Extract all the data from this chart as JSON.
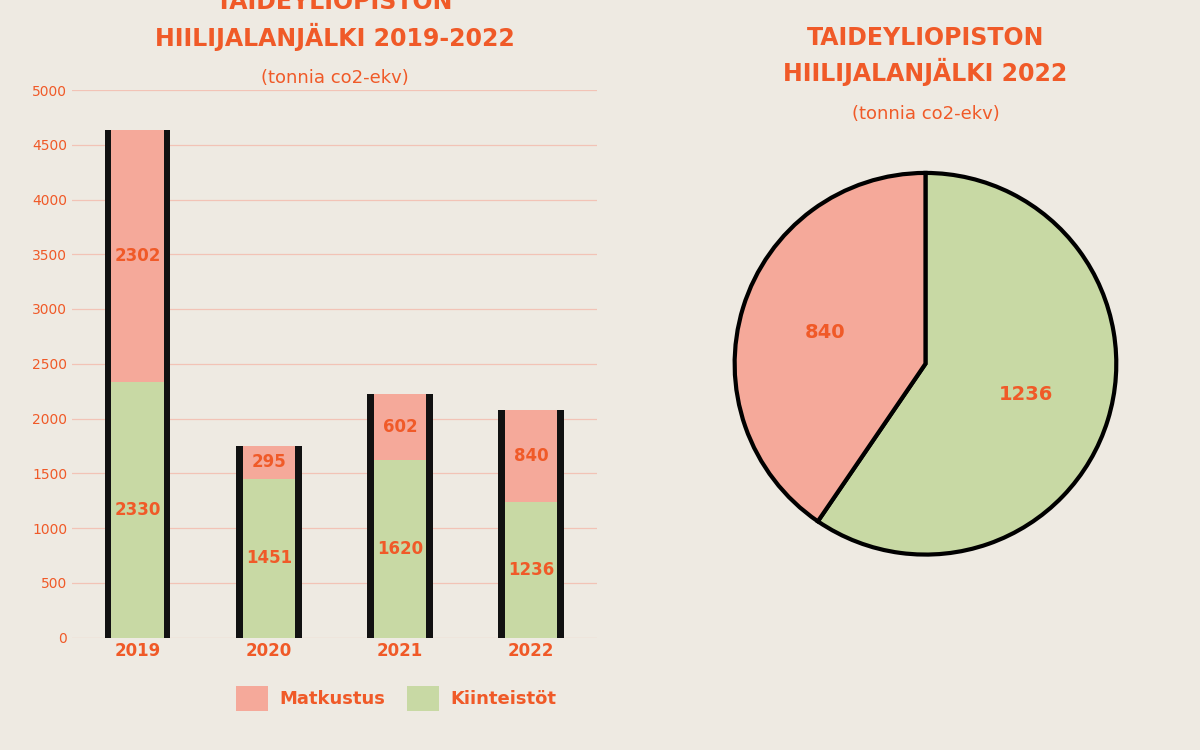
{
  "bg_color": "#eeeae2",
  "orange_color": "#f05a28",
  "bar_pink": "#f5a99a",
  "bar_green": "#c8d9a4",
  "bar_outline": "#111111",
  "years": [
    "2019",
    "2020",
    "2021",
    "2022"
  ],
  "matkustus": [
    2302,
    295,
    602,
    840
  ],
  "kiinteistot": [
    2330,
    1451,
    1620,
    1236
  ],
  "bar_title_line1": "TAIDEYLIOPISTON",
  "bar_title_line2": "HIILIJALANJÄLKI 2019-2022",
  "bar_subtitle": "(tonnia co2-ekv)",
  "pie_title_line1": "TAIDEYLIOPISTON",
  "pie_title_line2": "HIILIJALANJÄLKI 2022",
  "pie_subtitle": "(tonnia co2-ekv)",
  "pie_matkustus": 840,
  "pie_kiinteistot": 1236,
  "legend_matkustus": "Matkustus",
  "legend_kiinteistot": "Kiinteistöt",
  "ylim": [
    0,
    5000
  ],
  "yticks": [
    0,
    500,
    1000,
    1500,
    2000,
    2500,
    3000,
    3500,
    4000,
    4500,
    5000
  ],
  "grid_color": "#f5a99a",
  "grid_alpha": 0.6,
  "title_fontsize": 17,
  "subtitle_fontsize": 13,
  "label_fontsize": 12,
  "bar_label_fontsize": 12
}
